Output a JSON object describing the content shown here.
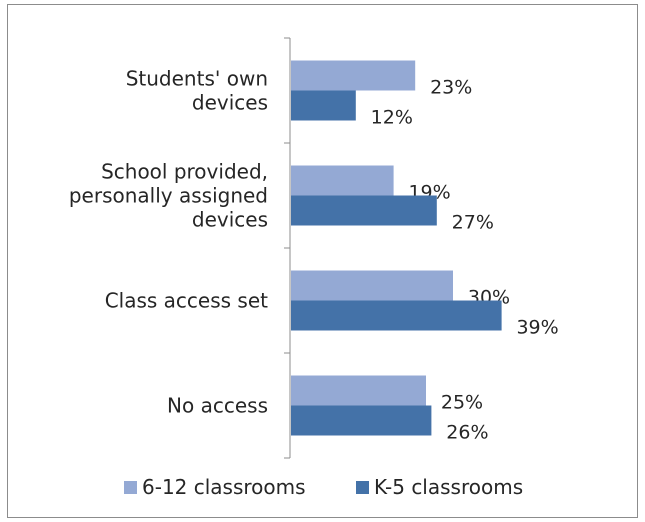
{
  "chart_data": {
    "type": "bar",
    "orientation": "horizontal",
    "categories": [
      [
        "Students' own",
        "devices"
      ],
      [
        "School provided,",
        "personally assigned",
        "devices"
      ],
      [
        "Class access set"
      ],
      [
        "No access"
      ]
    ],
    "series": [
      {
        "name": "6-12 classrooms",
        "color": "#94a9d4",
        "values": [
          23,
          19,
          30,
          25
        ],
        "labels": [
          "23%",
          "19%",
          "30%",
          "25%"
        ]
      },
      {
        "name": "K-5 classrooms",
        "color": "#4472a8",
        "values": [
          12,
          27,
          39,
          26
        ],
        "labels": [
          "12%",
          "27%",
          "39%",
          "26%"
        ]
      }
    ],
    "xlim": [
      0,
      100
    ],
    "grid": false,
    "legend_position": "bottom"
  }
}
